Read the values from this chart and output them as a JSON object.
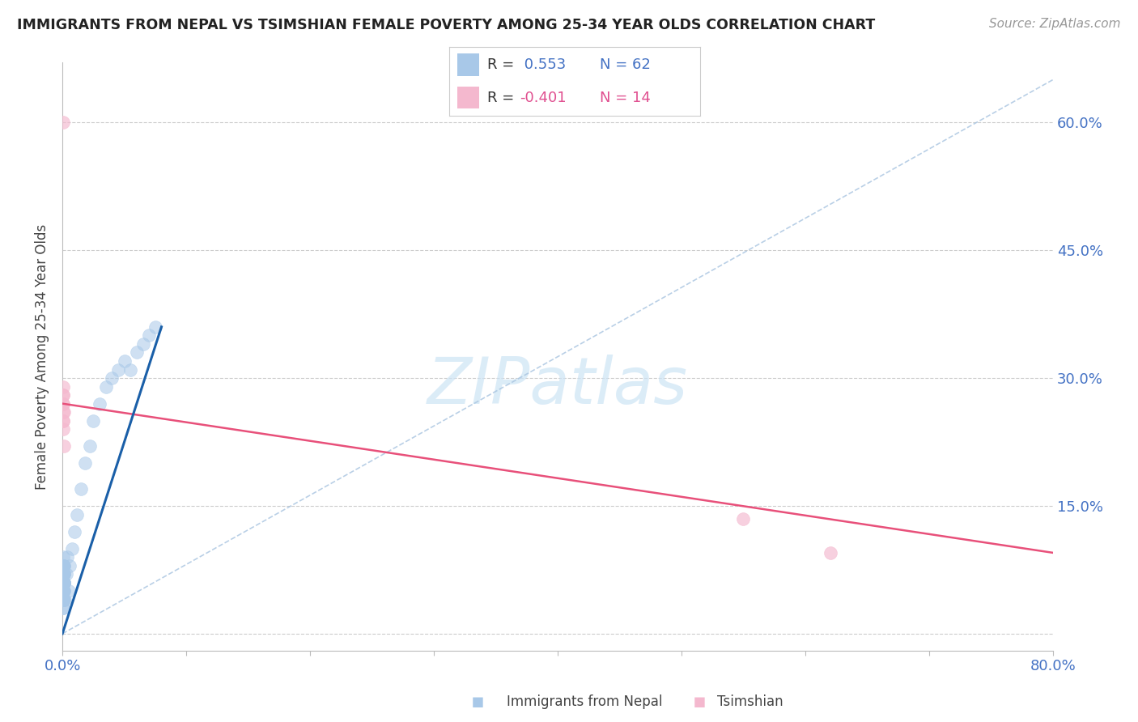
{
  "title": "IMMIGRANTS FROM NEPAL VS TSIMSHIAN FEMALE POVERTY AMONG 25-34 YEAR OLDS CORRELATION CHART",
  "source": "Source: ZipAtlas.com",
  "ylabel": "Female Poverty Among 25-34 Year Olds",
  "xlim": [
    0.0,
    0.8
  ],
  "ylim": [
    -0.02,
    0.67
  ],
  "yticks": [
    0.0,
    0.15,
    0.3,
    0.45,
    0.6
  ],
  "yticklabels_right": [
    "",
    "15.0%",
    "30.0%",
    "45.0%",
    "60.0%"
  ],
  "xticks": [
    0.0,
    0.1,
    0.2,
    0.3,
    0.4,
    0.5,
    0.6,
    0.7,
    0.8
  ],
  "legend_r1": " 0.553",
  "legend_n1": "62",
  "legend_r2": "-0.401",
  "legend_n2": "14",
  "nepal_color": "#a8c8e8",
  "tsimshian_color": "#f4b8ce",
  "nepal_line_color": "#1a5fa8",
  "tsimshian_line_color": "#e8507a",
  "dash_color": "#a8c4e0",
  "watermark_color": "#cde4f5",
  "nepal_x": [
    0.0005,
    0.0008,
    0.001,
    0.0012,
    0.0015,
    0.0008,
    0.001,
    0.0006,
    0.0009,
    0.0007,
    0.0005,
    0.001,
    0.0008,
    0.0006,
    0.0012,
    0.0007,
    0.0009,
    0.0005,
    0.001,
    0.0008,
    0.0006,
    0.0009,
    0.0007,
    0.0011,
    0.0008,
    0.0006,
    0.001,
    0.0007,
    0.0009,
    0.0005,
    0.0008,
    0.001,
    0.0006,
    0.0009,
    0.0007,
    0.0011,
    0.0008,
    0.0005,
    0.001,
    0.0012,
    0.002,
    0.003,
    0.004,
    0.005,
    0.006,
    0.008,
    0.01,
    0.012,
    0.015,
    0.018,
    0.022,
    0.025,
    0.03,
    0.035,
    0.04,
    0.045,
    0.05,
    0.055,
    0.06,
    0.065,
    0.07,
    0.075
  ],
  "nepal_y": [
    0.05,
    0.04,
    0.08,
    0.06,
    0.07,
    0.03,
    0.05,
    0.09,
    0.04,
    0.06,
    0.05,
    0.07,
    0.04,
    0.06,
    0.08,
    0.05,
    0.03,
    0.07,
    0.06,
    0.04,
    0.05,
    0.08,
    0.06,
    0.04,
    0.07,
    0.05,
    0.06,
    0.04,
    0.08,
    0.05,
    0.06,
    0.07,
    0.04,
    0.05,
    0.08,
    0.06,
    0.04,
    0.07,
    0.05,
    0.06,
    0.04,
    0.07,
    0.09,
    0.05,
    0.08,
    0.1,
    0.12,
    0.14,
    0.17,
    0.2,
    0.22,
    0.25,
    0.27,
    0.29,
    0.3,
    0.31,
    0.32,
    0.31,
    0.33,
    0.34,
    0.35,
    0.36
  ],
  "tsimshian_x": [
    0.0005,
    0.0008,
    0.0006,
    0.001,
    0.0007,
    0.0009,
    0.0006,
    0.0008,
    0.001,
    0.0007,
    0.0005,
    0.0009,
    0.55,
    0.62
  ],
  "tsimshian_y": [
    0.6,
    0.27,
    0.28,
    0.26,
    0.25,
    0.29,
    0.24,
    0.27,
    0.22,
    0.26,
    0.28,
    0.25,
    0.135,
    0.095
  ],
  "nepal_trend": [
    0.0,
    0.08,
    0.0,
    0.36
  ],
  "tsimshian_trend_start_y": 0.27,
  "tsimshian_trend_end_y": 0.095
}
